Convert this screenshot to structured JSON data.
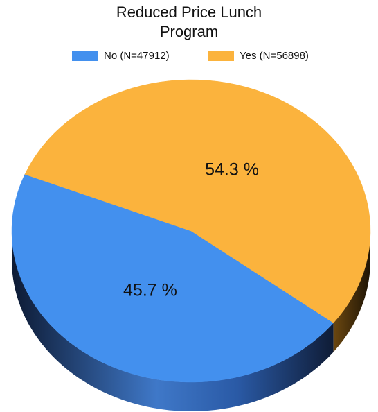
{
  "chart_data": {
    "type": "pie",
    "title_lines": [
      "Reduced Price Lunch",
      "Program"
    ],
    "legend_position": "top",
    "slices": [
      {
        "legend_label": "No (N=47912)",
        "count": 47912,
        "percent": 45.7,
        "label": "45.7 %",
        "color": "#4390ee"
      },
      {
        "legend_label": "Yes (N=56898)",
        "count": 56898,
        "percent": 54.3,
        "label": "54.3 %",
        "color": "#fbb33d"
      }
    ]
  }
}
